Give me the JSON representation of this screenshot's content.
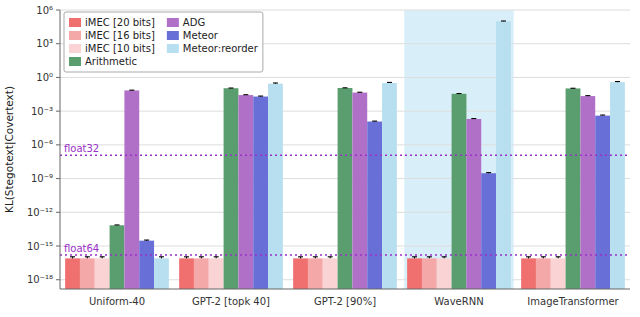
{
  "chart_data": {
    "type": "bar",
    "categories": [
      "Uniform-40",
      "GPT-2 [topk 40]",
      "GPT-2 [90%]",
      "WaveRNN",
      "ImageTransformer"
    ],
    "series": [
      {
        "name": "iMEC [20 bits]",
        "color": "#f07070",
        "values": [
          8e-17,
          8e-17,
          8e-17,
          8e-17,
          8e-17
        ],
        "errors": [
          3e-17,
          3e-17,
          3e-17,
          3e-17,
          3e-17
        ]
      },
      {
        "name": "iMEC [16 bits]",
        "color": "#f5a8a8",
        "values": [
          8e-17,
          8e-17,
          8e-17,
          8e-17,
          8e-17
        ],
        "errors": [
          3e-17,
          3e-17,
          3e-17,
          3e-17,
          3e-17
        ]
      },
      {
        "name": "iMEC [10 bits]",
        "color": "#fad4d4",
        "values": [
          8e-17,
          8e-17,
          8e-17,
          8e-17,
          8e-17
        ],
        "errors": [
          3e-17,
          3e-17,
          3e-17,
          3e-17,
          3e-17
        ]
      },
      {
        "name": "Arithmetic",
        "color": "#5a9e6f",
        "values": [
          7e-14,
          0.11,
          0.115,
          0.035,
          0.105
        ],
        "errors": [
          5e-15,
          0.004,
          0.004,
          0.002,
          0.004
        ]
      },
      {
        "name": "ADG",
        "color": "#b070c8",
        "values": [
          0.07,
          0.027,
          0.045,
          0.0002,
          0.022
        ],
        "errors": [
          0.004,
          0.002,
          0.003,
          2e-05,
          0.002
        ]
      },
      {
        "name": "Meteor",
        "color": "#6870d8",
        "values": [
          3e-15,
          0.02,
          0.00012,
          3e-09,
          0.0004
        ],
        "errors": [
          4e-16,
          0.002,
          1e-05,
          4e-10,
          5e-05
        ]
      },
      {
        "name": "Meteor:reorder",
        "color": "#b8dff0",
        "values": [
          8e-17,
          0.28,
          0.32,
          100000.0,
          0.38
        ],
        "errors": [
          3e-17,
          0.04,
          0.04,
          5000.0,
          0.05
        ]
      }
    ],
    "ylabel": "KL(Stegotext|Covertext)",
    "log": "y",
    "ylim": [
      1.5e-19,
      1000000.0
    ],
    "yticks": [
      {
        "value": 1e-18,
        "label": "10⁻¹⁸"
      },
      {
        "value": 1e-15,
        "label": "10⁻¹⁵"
      },
      {
        "value": 1e-12,
        "label": "10⁻¹²"
      },
      {
        "value": 1e-09,
        "label": "10⁻⁹"
      },
      {
        "value": 1e-06,
        "label": "10⁻⁶"
      },
      {
        "value": 0.001,
        "label": "10⁻³"
      },
      {
        "value": 1,
        "label": "10⁰"
      },
      {
        "value": 1000.0,
        "label": "10³"
      },
      {
        "value": 1000000.0,
        "label": "10⁶"
      }
    ],
    "grid": true,
    "legend": "upper left",
    "reference_lines": [
      {
        "label": "float32",
        "value": 1.2e-07,
        "color": "#9b30c8"
      },
      {
        "label": "float64",
        "value": 1.6e-16,
        "color": "#9b30c8"
      }
    ],
    "highlight": {
      "category": "WaveRNN",
      "color": "#c8e8f8"
    }
  }
}
